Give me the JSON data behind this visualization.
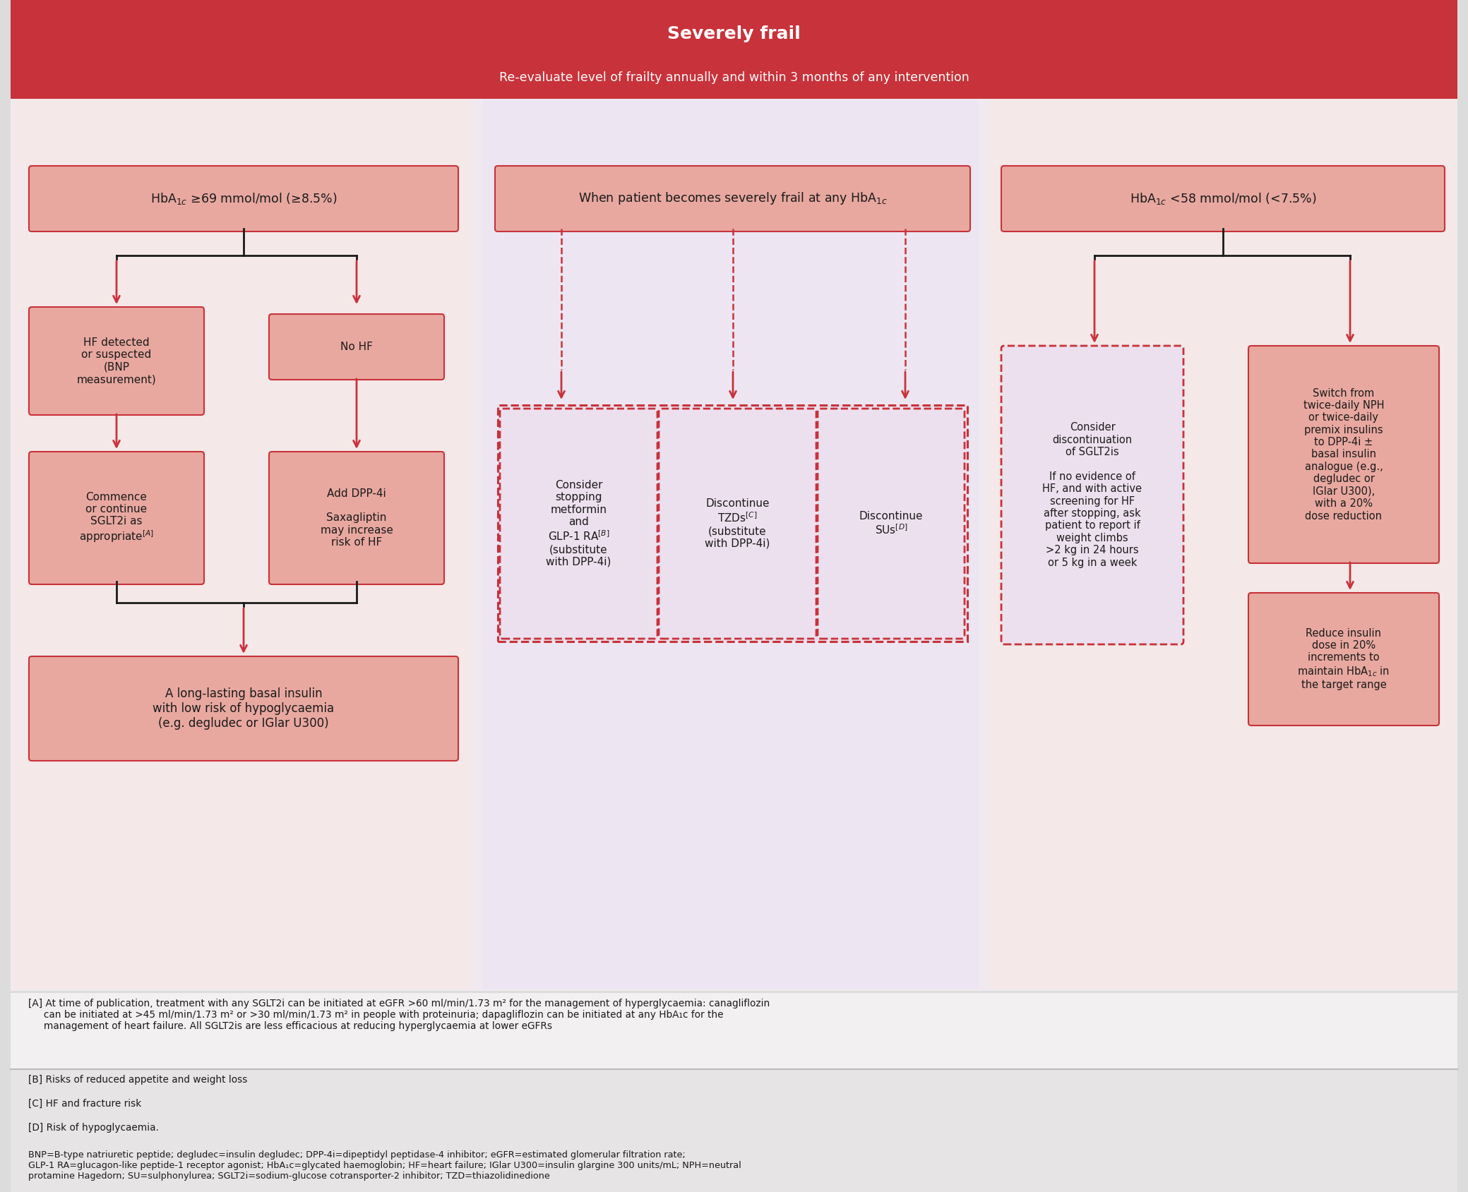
{
  "title_main": "Severely frail",
  "title_sub": "Re-evaluate level of frailty annually and within 3 months of any intervention",
  "header_color": "#C8323A",
  "box_pink_solid": "#E8A8A0",
  "box_pink_light": "#F0C8C0",
  "box_lavender": "#EDE0EE",
  "dashed_border": "#C8323A",
  "arrow_red": "#C8323A",
  "bg_left": "#F5E8E8",
  "bg_mid": "#EDE6F2",
  "bg_right": "#F5E8E8",
  "bg_overall": "#F0EAF0",
  "white": "#FFFFFF",
  "dark": "#1A1A1A",
  "footnote_bg_light": "#F2F0F0",
  "footnote_bg_dark": "#E6E4E4",
  "sep_color": "#BBBBBB",
  "note_A": "[A] At time of publication, treatment with any SGLT2i can be initiated at eGFR >60 ml/min/1.73 m² for the management of hyperglycaemia: canagliflozin\n     can be initiated at >45 ml/min/1.73 m² or >30 ml/min/1.73 m² in people with proteinuria; dapagliflozin can be initiated at any HbA₁c for the\n     management of heart failure. All SGLT2is are less efficacious at reducing hyperglycaemia at lower eGFRs",
  "note_B": "[B] Risks of reduced appetite and weight loss",
  "note_C": "[C] HF and fracture risk",
  "note_D": "[D] Risk of hypoglycaemia.",
  "abbrev": "BNP=B-type natriuretic peptide; degludec=insulin degludec; DPP-4i=dipeptidyl peptidase-4 inhibitor; eGFR=estimated glomerular filtration rate;\nGLP-1 RA=glucagon-like peptide-1 receptor agonist; HbA₁c=glycated haemoglobin; HF=heart failure; IGlar U300=insulin glargine 300 units/mL; NPH=neutral\nprotamine Hagedorn; SU=sulphonylurea; SGLT2i=sodium-glucose cotransporter-2 inhibitor; TZD=thiazolidinedione"
}
